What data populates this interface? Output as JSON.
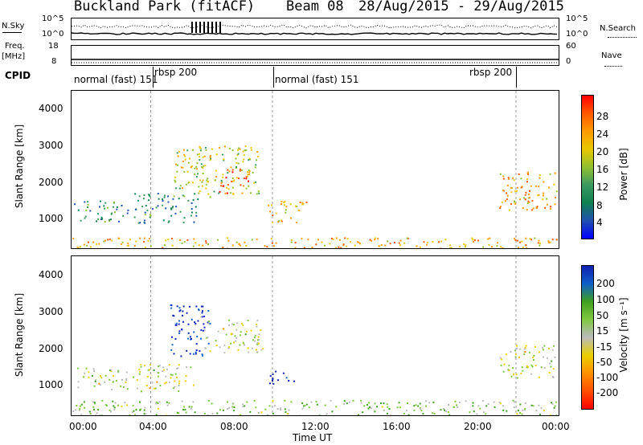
{
  "header": {
    "title": "Buckland Park (fitACF)",
    "beam": "Beam 08",
    "date_range": "28/Aug/2015 - 29/Aug/2015"
  },
  "noise_panel": {
    "left_label": "N.Sky",
    "left_ticks": [
      "10^5",
      "10^0"
    ],
    "right_ticks": [
      "10^5",
      "10^0"
    ],
    "right_label": "N.Search"
  },
  "freq_panel": {
    "left_label_1": "Freq.",
    "left_label_2": "[MHz]",
    "left_ticks": [
      "18",
      "8"
    ],
    "right_ticks": [
      "60",
      "0"
    ],
    "right_label": "Nave"
  },
  "cpid_panel": {
    "label": "CPID",
    "segments": [
      {
        "text": "normal (fast) 151",
        "start_hour": 0.0
      },
      {
        "text": "rbsp 200",
        "start_hour": 3.9
      },
      {
        "text": "normal (fast) 151",
        "start_hour": 9.9
      },
      {
        "text": "rbsp 200",
        "start_hour": 21.9
      }
    ],
    "segment_boundaries_hours": [
      3.9,
      9.9,
      21.9
    ]
  },
  "power_panel": {
    "ylabel": "Slant Range [km]",
    "colorbar_label": "Power [dB]",
    "colorbar_ticks": [
      "28",
      "24",
      "20",
      "16",
      "12",
      "8",
      "4"
    ],
    "colorbar_colors": [
      "#ff0000",
      "#ff5a00",
      "#ff9a00",
      "#e8c800",
      "#90c030",
      "#3a9a60",
      "#108050",
      "#2050b0",
      "#0000ff"
    ]
  },
  "velocity_panel": {
    "ylabel": "Slant Range [km]",
    "colorbar_label": "Velocity [m s⁻¹]",
    "colorbar_ticks": [
      "200",
      "100",
      "50",
      "15",
      "-15",
      "-50",
      "-100",
      "-200"
    ],
    "colorbar_colors": [
      "#1020b0",
      "#1060c8",
      "#40a020",
      "#80c840",
      "#bbbbbb",
      "#e8d000",
      "#ff9000",
      "#ff5000",
      "#ff0000"
    ]
  },
  "x_axis": {
    "label": "Time UT",
    "ticks": [
      "00:00",
      "04:00",
      "08:00",
      "12:00",
      "16:00",
      "20:00",
      "00:00"
    ]
  },
  "chart_data": {
    "type": "heatmap",
    "title": "Buckland Park (fitACF)",
    "subtitle": "Beam 08 28/Aug/2015 - 29/Aug/2015",
    "x_unit": "hours UT",
    "xlim": [
      0,
      24
    ],
    "ylim": [
      180,
      4500
    ],
    "yticks": [
      1000,
      2000,
      3000,
      4000
    ],
    "xlabel": "Time UT",
    "ylabel": "Slant Range [km]",
    "panels": [
      {
        "name": "Power [dB]",
        "clim": [
          0,
          32
        ],
        "regions": [
          {
            "t0": 0.1,
            "t1": 2.8,
            "r0": 900,
            "r1": 1500,
            "level": 10
          },
          {
            "t0": 3.0,
            "t1": 6.2,
            "r0": 850,
            "r1": 1700,
            "level": 10
          },
          {
            "t0": 5.0,
            "t1": 9.2,
            "r0": 1600,
            "r1": 3000,
            "level": 18
          },
          {
            "t0": 7.2,
            "t1": 8.8,
            "r0": 1700,
            "r1": 2400,
            "level": 26
          },
          {
            "t0": 9.6,
            "t1": 11.6,
            "r0": 900,
            "r1": 1500,
            "level": 22
          },
          {
            "t0": 21.0,
            "t1": 23.9,
            "r0": 1200,
            "r1": 2300,
            "level": 22
          },
          {
            "t0": 0.0,
            "t1": 24.0,
            "r0": 180,
            "r1": 480,
            "level": 22
          }
        ]
      },
      {
        "name": "Velocity [m s-1]",
        "clim": [
          -200,
          200
        ],
        "regions": [
          {
            "t0": 0.1,
            "t1": 2.8,
            "r0": 900,
            "r1": 1500,
            "level": 0
          },
          {
            "t0": 3.0,
            "t1": 6.0,
            "r0": 850,
            "r1": 1600,
            "level": 0
          },
          {
            "t0": 4.8,
            "t1": 6.8,
            "r0": 1800,
            "r1": 3200,
            "level": 180
          },
          {
            "t0": 6.5,
            "t1": 9.5,
            "r0": 1900,
            "r1": 2800,
            "level": 0
          },
          {
            "t0": 9.7,
            "t1": 11.0,
            "r0": 1000,
            "r1": 1400,
            "level": 220
          },
          {
            "t0": 21.0,
            "t1": 23.9,
            "r0": 1200,
            "r1": 2100,
            "level": 0
          },
          {
            "t0": 0.0,
            "t1": 24.0,
            "r0": 180,
            "r1": 600,
            "level": 40
          }
        ]
      }
    ]
  }
}
